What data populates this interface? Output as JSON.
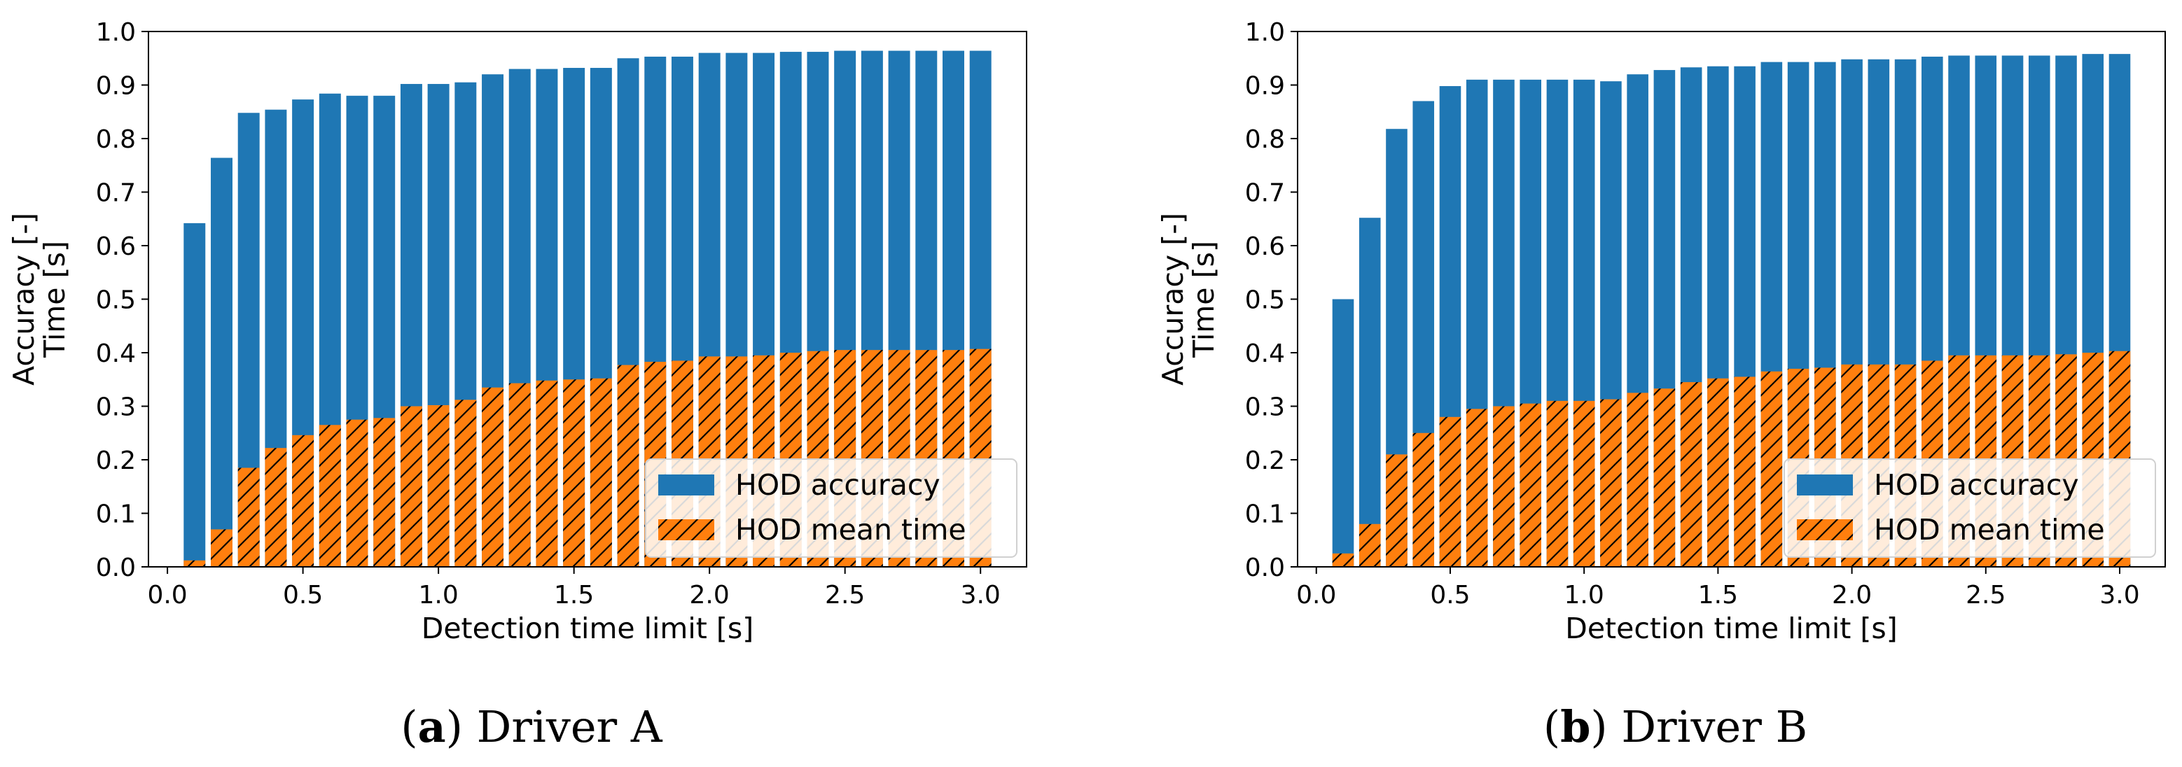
{
  "colors": {
    "accuracy": "#1f77b4",
    "mean_time": "#ff7f0e",
    "hatch": "#000000",
    "legend_border": "#d0d0d0"
  },
  "chart_data": [
    {
      "type": "bar",
      "caption": {
        "label": "a",
        "text": "Driver A"
      },
      "xlabel": "Detection time limit [s]",
      "ylabel_lines": [
        "Accuracy [-]",
        "Time [s]"
      ],
      "xlim": [
        -0.07,
        3.17
      ],
      "ylim": [
        0,
        1.0
      ],
      "xticks": [
        0.0,
        0.5,
        1.0,
        1.5,
        2.0,
        2.5,
        3.0
      ],
      "xtick_labels": [
        "0.0",
        "0.5",
        "1.0",
        "1.5",
        "2.0",
        "2.5",
        "3.0"
      ],
      "yticks": [
        0.0,
        0.1,
        0.2,
        0.3,
        0.4,
        0.5,
        0.6,
        0.7,
        0.8,
        0.9,
        1.0
      ],
      "ytick_labels": [
        "0.0",
        "0.1",
        "0.2",
        "0.3",
        "0.4",
        "0.5",
        "0.6",
        "0.7",
        "0.8",
        "0.9",
        "1.0"
      ],
      "bar_width": 0.08,
      "x": [
        0.1,
        0.2,
        0.3,
        0.4,
        0.5,
        0.6,
        0.7,
        0.8,
        0.9,
        1.0,
        1.1,
        1.2,
        1.3,
        1.4,
        1.5,
        1.6,
        1.7,
        1.8,
        1.9,
        2.0,
        2.1,
        2.2,
        2.3,
        2.4,
        2.5,
        2.6,
        2.7,
        2.8,
        2.9,
        3.0
      ],
      "series": [
        {
          "name": "HOD accuracy",
          "key": "accuracy",
          "values": [
            0.642,
            0.764,
            0.848,
            0.854,
            0.873,
            0.884,
            0.88,
            0.88,
            0.902,
            0.902,
            0.905,
            0.92,
            0.93,
            0.93,
            0.932,
            0.932,
            0.95,
            0.953,
            0.953,
            0.96,
            0.96,
            0.96,
            0.962,
            0.962,
            0.964,
            0.964,
            0.964,
            0.964,
            0.964,
            0.964
          ]
        },
        {
          "name": "HOD mean time",
          "key": "mean_time",
          "values": [
            0.012,
            0.07,
            0.185,
            0.222,
            0.246,
            0.265,
            0.275,
            0.278,
            0.3,
            0.302,
            0.312,
            0.335,
            0.343,
            0.348,
            0.35,
            0.352,
            0.377,
            0.383,
            0.385,
            0.393,
            0.393,
            0.395,
            0.4,
            0.403,
            0.405,
            0.405,
            0.405,
            0.405,
            0.405,
            0.407
          ]
        }
      ],
      "legend_position": "lower-right"
    },
    {
      "type": "bar",
      "caption": {
        "label": "b",
        "text": "Driver B"
      },
      "xlabel": "Detection time limit [s]",
      "ylabel_lines": [
        "Accuracy [-]",
        "Time [s]"
      ],
      "xlim": [
        -0.07,
        3.17
      ],
      "ylim": [
        0,
        1.0
      ],
      "xticks": [
        0.0,
        0.5,
        1.0,
        1.5,
        2.0,
        2.5,
        3.0
      ],
      "xtick_labels": [
        "0.0",
        "0.5",
        "1.0",
        "1.5",
        "2.0",
        "2.5",
        "3.0"
      ],
      "yticks": [
        0.0,
        0.1,
        0.2,
        0.3,
        0.4,
        0.5,
        0.6,
        0.7,
        0.8,
        0.9,
        1.0
      ],
      "ytick_labels": [
        "0.0",
        "0.1",
        "0.2",
        "0.3",
        "0.4",
        "0.5",
        "0.6",
        "0.7",
        "0.8",
        "0.9",
        "1.0"
      ],
      "bar_width": 0.08,
      "x": [
        0.1,
        0.2,
        0.3,
        0.4,
        0.5,
        0.6,
        0.7,
        0.8,
        0.9,
        1.0,
        1.1,
        1.2,
        1.3,
        1.4,
        1.5,
        1.6,
        1.7,
        1.8,
        1.9,
        2.0,
        2.1,
        2.2,
        2.3,
        2.4,
        2.5,
        2.6,
        2.7,
        2.8,
        2.9,
        3.0
      ],
      "series": [
        {
          "name": "HOD accuracy",
          "key": "accuracy",
          "values": [
            0.5,
            0.652,
            0.818,
            0.87,
            0.898,
            0.91,
            0.91,
            0.91,
            0.91,
            0.91,
            0.907,
            0.92,
            0.928,
            0.933,
            0.935,
            0.935,
            0.943,
            0.943,
            0.943,
            0.948,
            0.948,
            0.948,
            0.953,
            0.955,
            0.955,
            0.955,
            0.955,
            0.955,
            0.958,
            0.958
          ]
        },
        {
          "name": "HOD mean time",
          "key": "mean_time",
          "values": [
            0.025,
            0.08,
            0.21,
            0.25,
            0.28,
            0.295,
            0.3,
            0.305,
            0.31,
            0.31,
            0.313,
            0.325,
            0.333,
            0.345,
            0.352,
            0.355,
            0.365,
            0.37,
            0.372,
            0.378,
            0.378,
            0.378,
            0.385,
            0.395,
            0.395,
            0.395,
            0.395,
            0.397,
            0.4,
            0.403
          ]
        }
      ],
      "legend_position": "lower-right"
    }
  ]
}
